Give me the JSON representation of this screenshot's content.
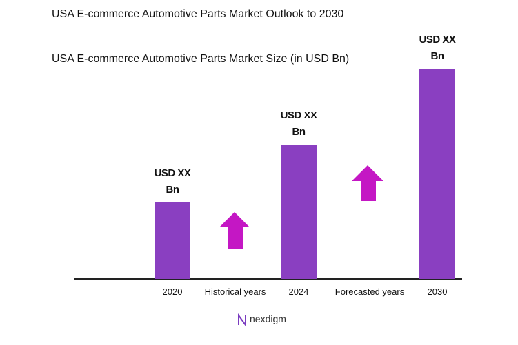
{
  "chart_data": {
    "type": "bar",
    "title": "USA E-commerce Automotive Parts Market Outlook to 2030",
    "subtitle": "USA E-commerce Automotive Parts Market Size (in USD Bn)",
    "categories": [
      "2020",
      "2024",
      "2030"
    ],
    "values": [
      111,
      195,
      305
    ],
    "value_labels": [
      "USD XX Bn",
      "USD XX Bn",
      "USD XX Bn"
    ],
    "color": "#8a3fc1",
    "ylim": [
      0,
      330
    ],
    "annotations": [
      "Historical years",
      "Forecasted years"
    ]
  },
  "logo": "nexdigm"
}
